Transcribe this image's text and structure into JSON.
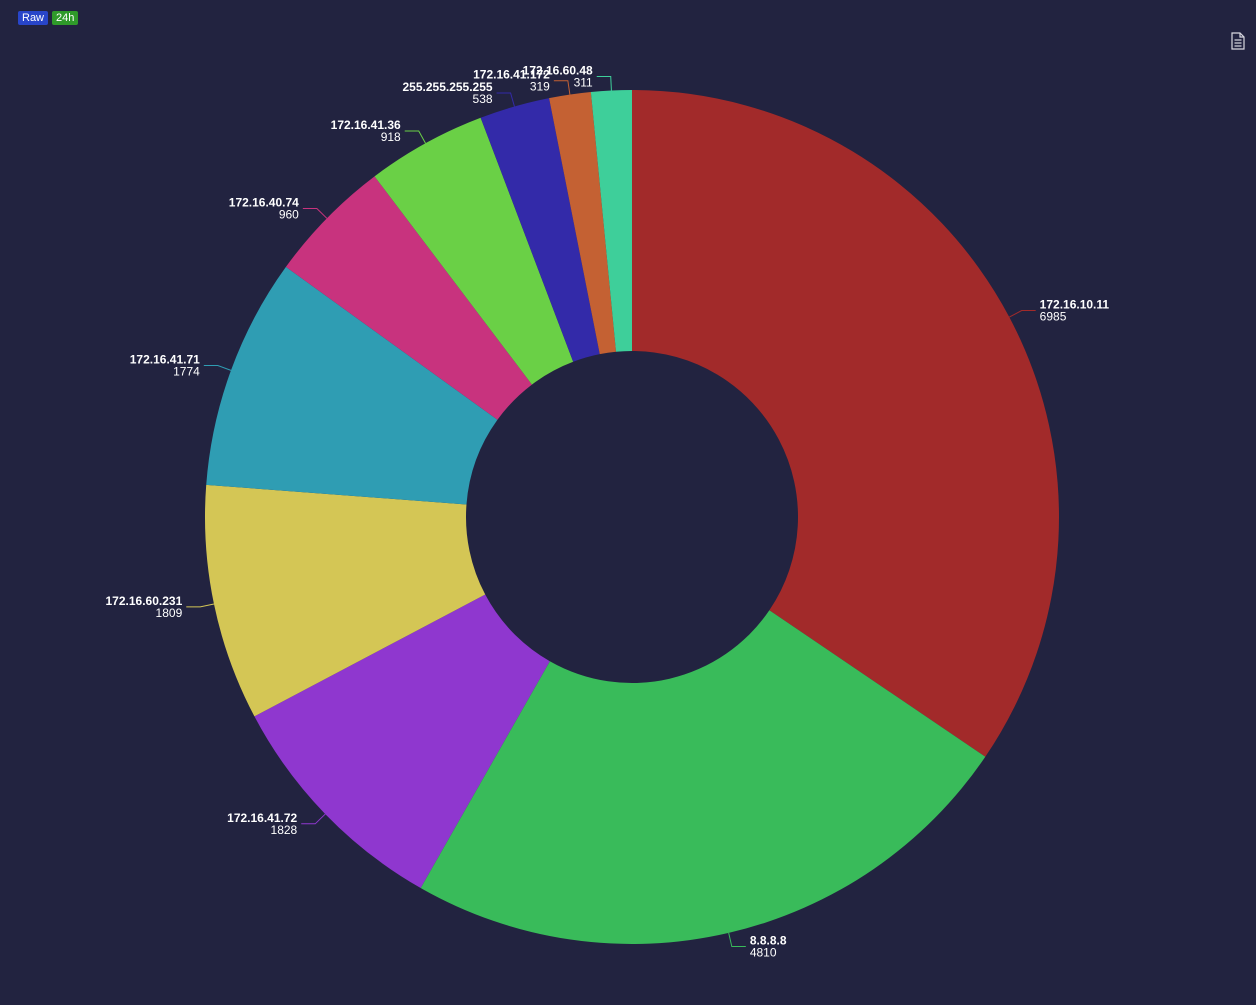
{
  "toolbar": {
    "badges": [
      {
        "label": "Raw",
        "color": "#2845c9"
      },
      {
        "label": "24h",
        "color": "#2f9a2a"
      }
    ],
    "export_icon": "document-icon"
  },
  "theme": {
    "background": "#222340",
    "label_color": "#ffffff"
  },
  "chart_data": {
    "type": "pie",
    "variant": "donut",
    "legend": "none",
    "slices": [
      {
        "label": "172.16.10.11",
        "value": 6985,
        "color": "#a22a2a"
      },
      {
        "label": "8.8.8.8",
        "value": 4810,
        "color": "#39bb5a"
      },
      {
        "label": "172.16.41.72",
        "value": 1828,
        "color": "#8f37cf"
      },
      {
        "label": "172.16.60.231",
        "value": 1809,
        "color": "#d4c655"
      },
      {
        "label": "172.16.41.71",
        "value": 1774,
        "color": "#2f9db3"
      },
      {
        "label": "172.16.40.74",
        "value": 960,
        "color": "#c8337e"
      },
      {
        "label": "172.16.41.36",
        "value": 918,
        "color": "#6ad046"
      },
      {
        "label": "255.255.255.255",
        "value": 538,
        "color": "#332aa9"
      },
      {
        "label": "172.16.41.172",
        "value": 319,
        "color": "#c46133"
      },
      {
        "label": "172.16.60.48",
        "value": 311,
        "color": "#3ecf9a"
      }
    ]
  }
}
